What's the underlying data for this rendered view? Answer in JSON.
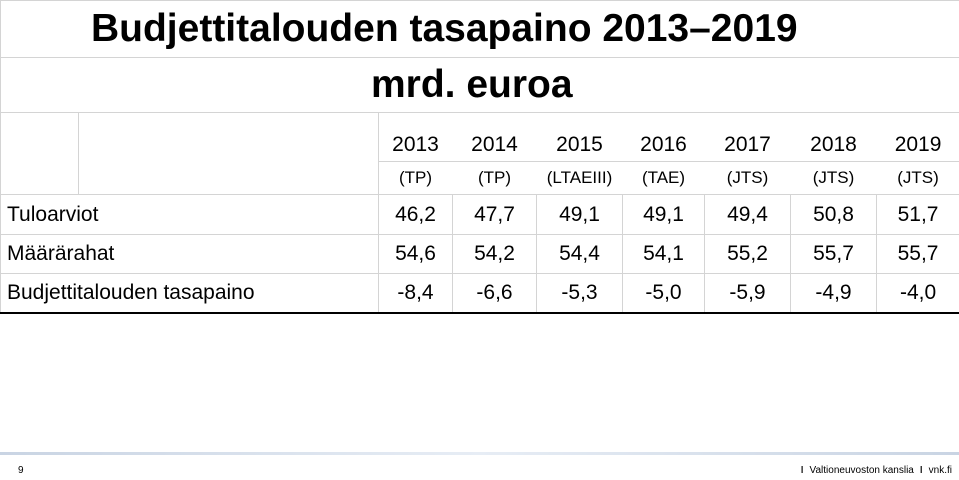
{
  "title": "Budjettitalouden tasapaino 2013–2019",
  "subtitle": "mrd. euroa",
  "years": [
    "2013",
    "2014",
    "2015",
    "2016",
    "2017",
    "2018",
    "2019"
  ],
  "phases": [
    "(TP)",
    "(TP)",
    "(LTAEIII)",
    "(TAE)",
    "(JTS)",
    "(JTS)",
    "(JTS)"
  ],
  "rows": [
    {
      "label": "Tuloarviot",
      "values": [
        "46,2",
        "47,7",
        "49,1",
        "49,1",
        "49,4",
        "50,8",
        "51,7"
      ]
    },
    {
      "label": "Määrärahat",
      "values": [
        "54,6",
        "54,2",
        "54,4",
        "54,1",
        "55,2",
        "55,7",
        "55,7"
      ]
    },
    {
      "label": "Budjettitalouden tasapaino",
      "values": [
        "-8,4",
        "-6,6",
        "-5,3",
        "-5,0",
        "-5,9",
        "-4,9",
        "-4,0"
      ]
    }
  ],
  "footer": {
    "page_number": "9",
    "org": "Valtioneuvoston kanslia",
    "site": "vnk.fi"
  }
}
